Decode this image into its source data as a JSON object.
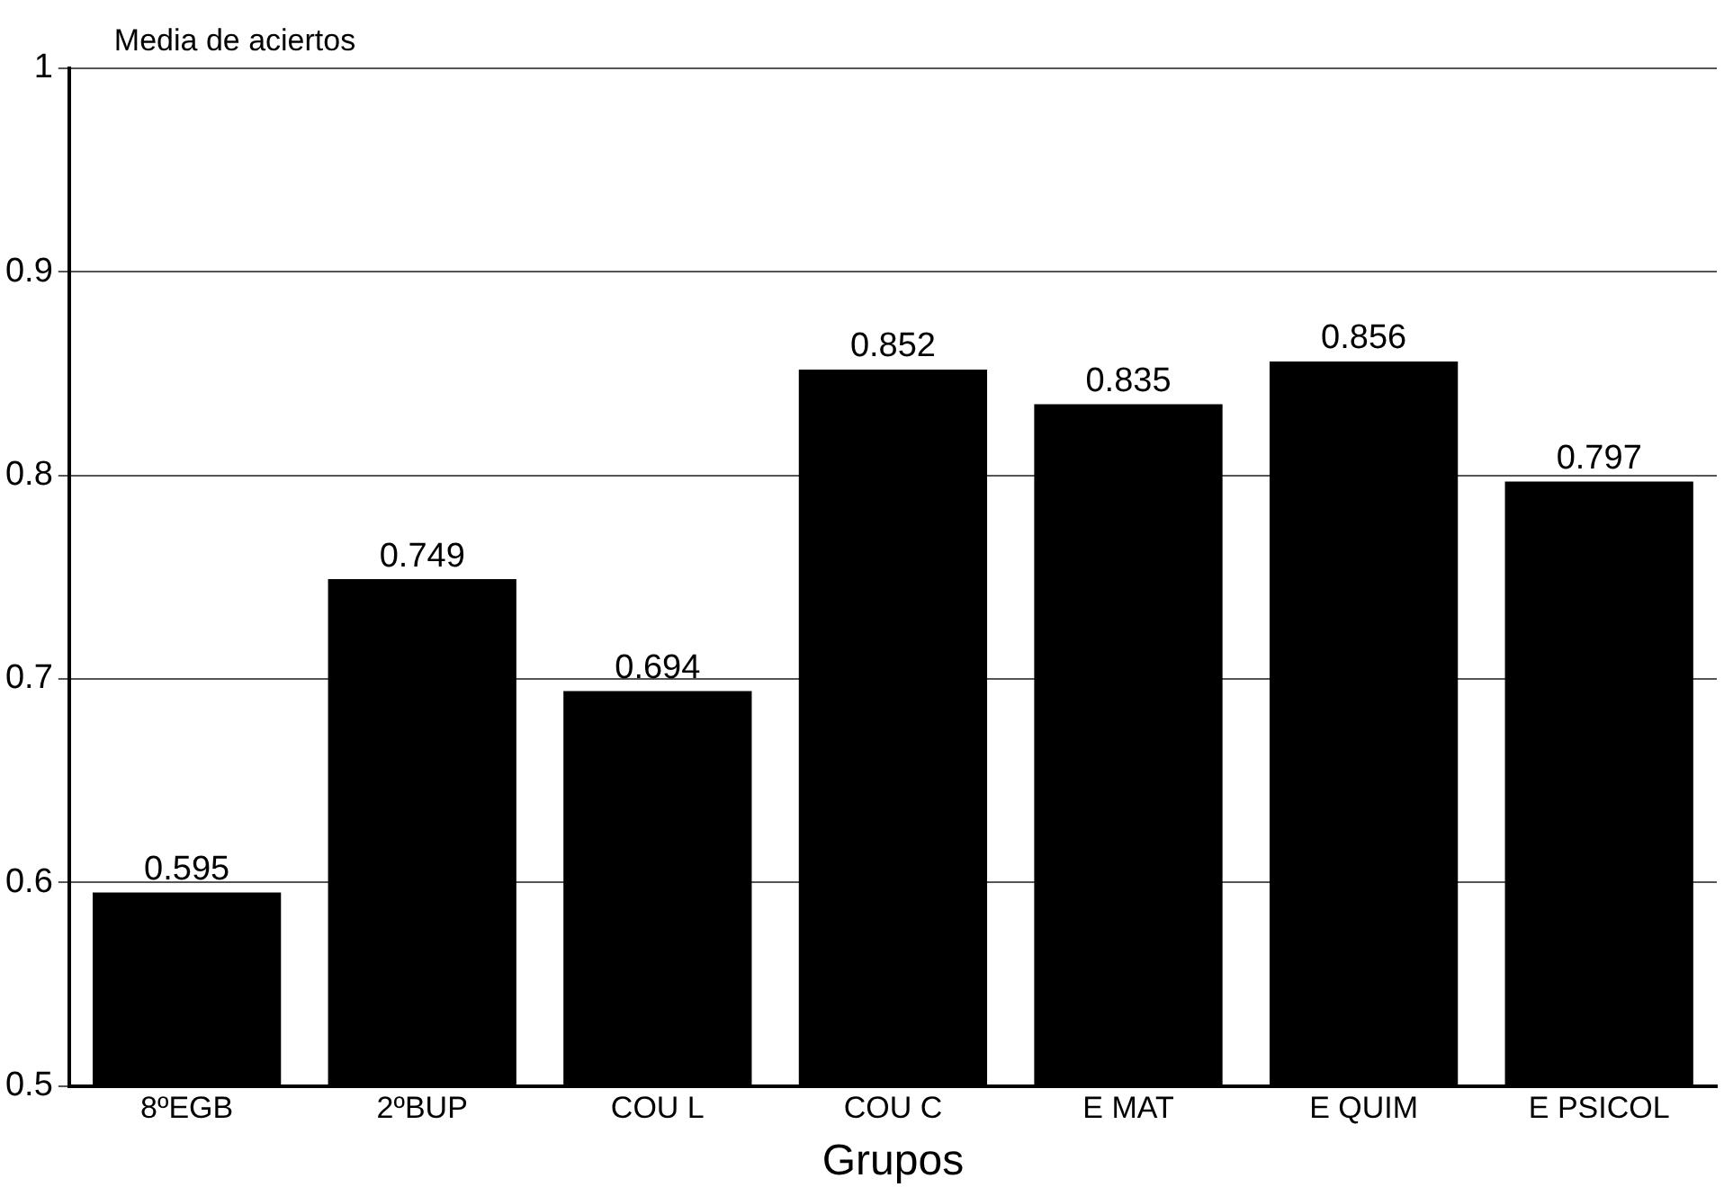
{
  "chart_data": {
    "type": "bar",
    "ylabel": "Media de aciertos",
    "xlabel": "Grupos",
    "categories": [
      "8ºEGB",
      "2ºBUP",
      "COU L",
      "COU C",
      "E MAT",
      "E QUIM",
      "E PSICOL"
    ],
    "values": [
      0.595,
      0.749,
      0.694,
      0.852,
      0.835,
      0.856,
      0.797
    ],
    "color": "#000000",
    "ylim": [
      0.5,
      1
    ],
    "yticks": [
      0.5,
      0.6,
      0.7,
      0.8,
      0.9,
      1
    ],
    "grid": "y",
    "data_labels": true
  }
}
